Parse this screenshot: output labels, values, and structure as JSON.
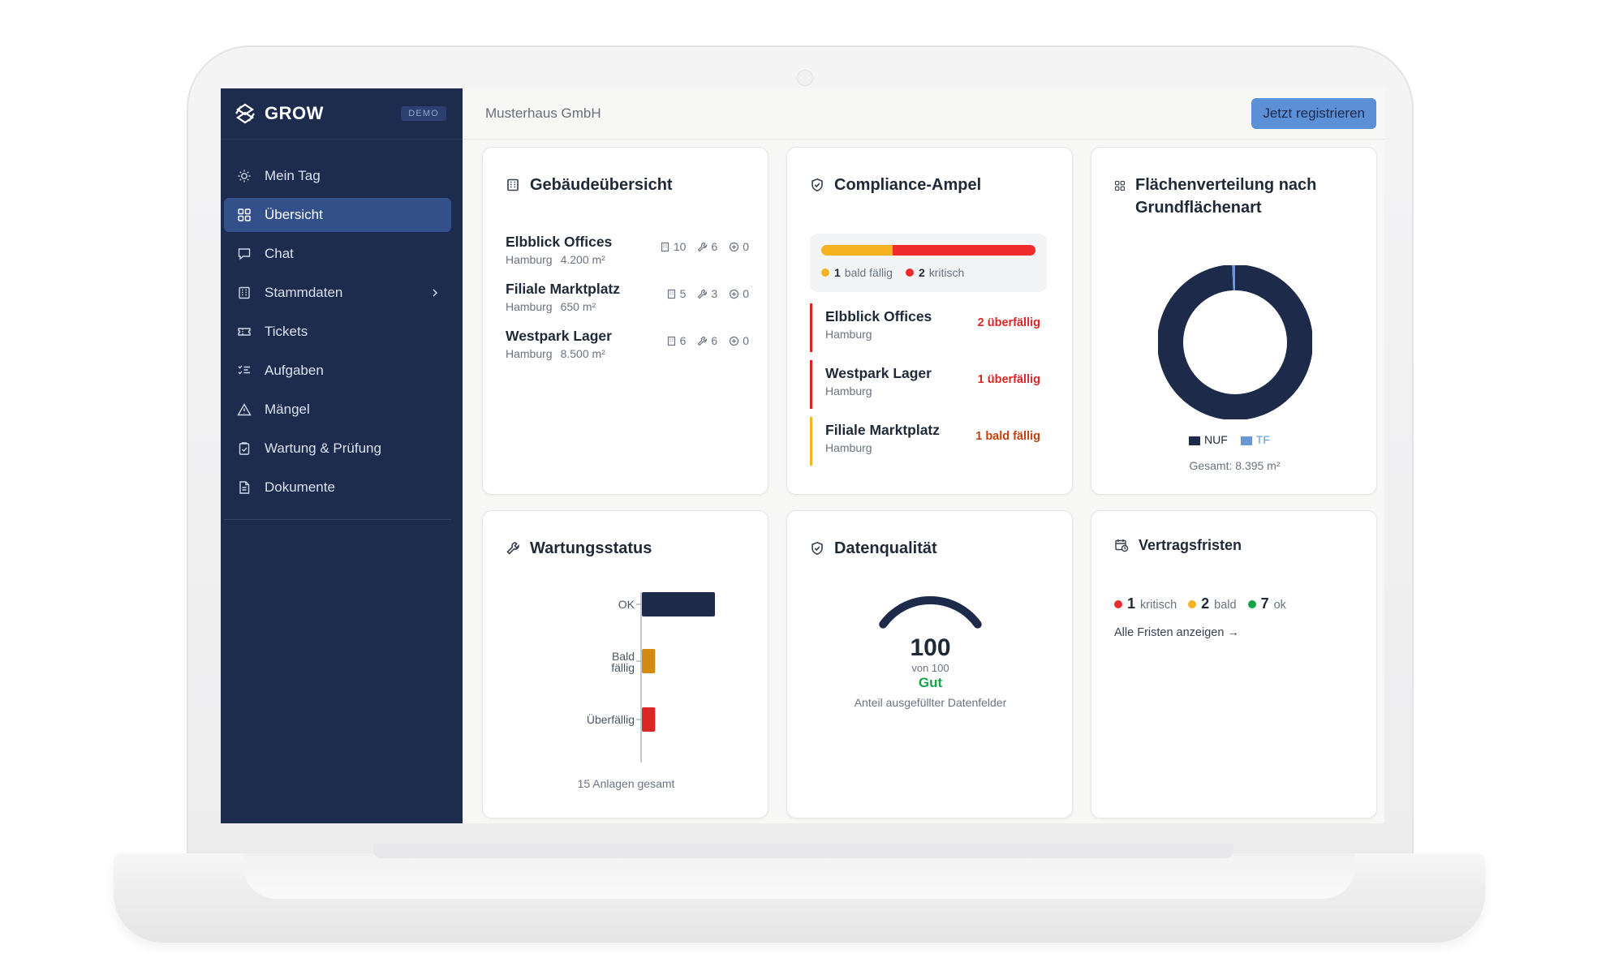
{
  "app": {
    "brand": "GROW",
    "badge": "DEMO",
    "company": "Musterhaus GmbH",
    "register_label": "Jetzt registrieren",
    "colors": {
      "sidebar": "#1d2b4f",
      "active": "#34508a",
      "accent": "#5b8fd6",
      "navy": "#1e2a4a",
      "warning": "#f5b321",
      "amber": "#d18a12",
      "critical": "#dc2626",
      "good": "#16a34a"
    }
  },
  "sidebar": {
    "items": [
      {
        "label": "Mein Tag",
        "icon": "sun-icon"
      },
      {
        "label": "Übersicht",
        "icon": "grid-icon",
        "active": true
      },
      {
        "label": "Chat",
        "icon": "chat-icon"
      },
      {
        "label": "Stammdaten",
        "icon": "building-icon",
        "has_submenu": true
      },
      {
        "label": "Tickets",
        "icon": "ticket-icon"
      },
      {
        "label": "Aufgaben",
        "icon": "list-check-icon"
      },
      {
        "label": "Mängel",
        "icon": "warning-triangle-icon"
      },
      {
        "label": "Wartung & Prüfung",
        "icon": "clipboard-check-icon"
      },
      {
        "label": "Dokumente",
        "icon": "document-icon"
      }
    ]
  },
  "buildings": {
    "title": "Gebäudeübersicht",
    "items": [
      {
        "name": "Elbblick Offices",
        "city": "Hamburg",
        "area": "4.200 m²",
        "units": "10",
        "assets": "6",
        "tickets": "0"
      },
      {
        "name": "Filiale Marktplatz",
        "city": "Hamburg",
        "area": "650 m²",
        "units": "5",
        "assets": "3",
        "tickets": "0"
      },
      {
        "name": "Westpark Lager",
        "city": "Hamburg",
        "area": "8.500 m²",
        "units": "6",
        "assets": "6",
        "tickets": "0"
      }
    ]
  },
  "compliance": {
    "title": "Compliance-Ampel",
    "legend": [
      {
        "count": "1",
        "label": "bald fällig",
        "color": "#f5b321"
      },
      {
        "count": "2",
        "label": "kritisch",
        "color": "#ef2b2b"
      }
    ],
    "rows": [
      {
        "name": "Elbblick Offices",
        "city": "Hamburg",
        "status": "2 überfällig",
        "level": "critical"
      },
      {
        "name": "Westpark Lager",
        "city": "Hamburg",
        "status": "1 überfällig",
        "level": "critical"
      },
      {
        "name": "Filiale Marktplatz",
        "city": "Hamburg",
        "status": "1 bald fällig",
        "level": "warning"
      }
    ]
  },
  "area": {
    "title_line1": "Flächenverteilung nach",
    "title_line2": "Grundflächenart",
    "total": "Gesamt: 8.395 m²"
  },
  "maintenance": {
    "title": "Wartungsstatus",
    "footer": "15 Anlagen gesamt"
  },
  "quality": {
    "title": "Datenqualität",
    "score": "100",
    "of_label": "von 100",
    "rating": "Gut",
    "caption": "Anteil ausgefüllter Datenfelder"
  },
  "contracts": {
    "title": "Vertragsfristen",
    "items": [
      {
        "count": "1",
        "label": "kritisch",
        "color": "#e5302e"
      },
      {
        "count": "2",
        "label": "bald",
        "color": "#f5b321"
      },
      {
        "count": "7",
        "label": "ok",
        "color": "#16a34a"
      }
    ],
    "link_label": "Alle Fristen anzeigen →"
  },
  "chart_data": [
    {
      "type": "pie",
      "variant": "donut",
      "categories": [
        "NUF",
        "TF"
      ],
      "values": [
        8340,
        55
      ],
      "colors": [
        "#1e2a4a",
        "#6a96d6"
      ],
      "unit": "m²",
      "legend_position": "bottom"
    },
    {
      "type": "bar",
      "orientation": "horizontal",
      "categories": [
        "OK",
        "Bald fällig",
        "Überfällig"
      ],
      "values": [
        11,
        2,
        2
      ],
      "colors": [
        "#1e2a4a",
        "#d18a12",
        "#dc2626"
      ],
      "xlim": [
        0,
        11
      ]
    },
    {
      "type": "gauge",
      "value": 100,
      "max": 100,
      "color": "#1e2a4a"
    }
  ]
}
